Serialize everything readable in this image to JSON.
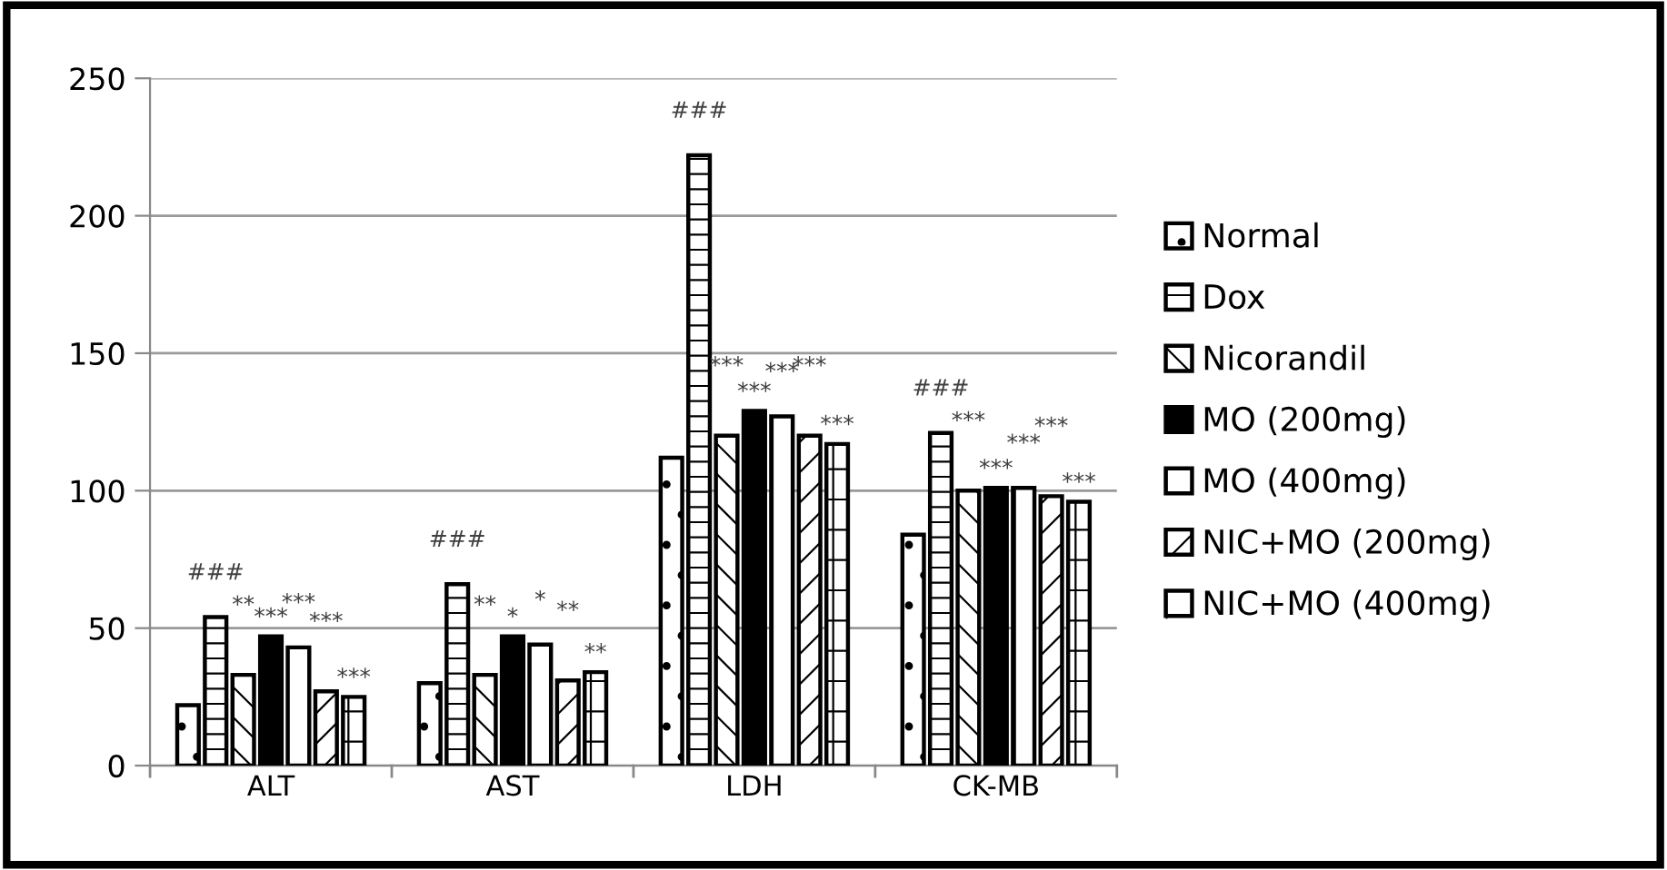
{
  "chart_data": {
    "type": "bar",
    "categories": [
      "ALT",
      "AST",
      "LDH",
      "CK-MB"
    ],
    "series": [
      {
        "name": "Normal",
        "color": "#ffffff",
        "values": [
          22,
          30,
          112,
          84
        ],
        "value_labels": [
          null,
          null,
          null,
          null
        ]
      },
      {
        "name": "Dox",
        "color": "#ffffff",
        "values": [
          54,
          66,
          222,
          121
        ],
        "value_labels": [
          "###",
          "###",
          "###",
          "###"
        ]
      },
      {
        "name": "Nicorandil",
        "color": "#ffffff",
        "values": [
          33,
          33,
          120,
          100
        ],
        "value_labels": [
          "**",
          "**",
          "***",
          "***"
        ]
      },
      {
        "name": "MO (200mg)",
        "color": "#000000",
        "values": [
          47,
          47,
          129,
          101
        ],
        "value_labels": [
          "***",
          "*",
          "***",
          "***"
        ]
      },
      {
        "name": "MO (400mg)",
        "color": "#ffffff",
        "values": [
          43,
          44,
          127,
          101
        ],
        "value_labels": [
          "***",
          "*",
          "***",
          "***"
        ]
      },
      {
        "name": "NIC+MO (200mg)",
        "color": "#ffffff",
        "values": [
          27,
          31,
          120,
          98
        ],
        "value_labels": [
          "***",
          "**",
          "***",
          "***"
        ]
      },
      {
        "name": "NIC+MO (400mg)",
        "color": "#ffffff",
        "values": [
          25,
          34,
          117,
          96
        ],
        "value_labels": [
          "***",
          "**",
          "***",
          "***"
        ]
      }
    ],
    "ylim": [
      0,
      250
    ],
    "yticks": [
      0,
      50,
      100,
      150,
      200,
      250
    ],
    "grid": "y",
    "legend": "right"
  }
}
